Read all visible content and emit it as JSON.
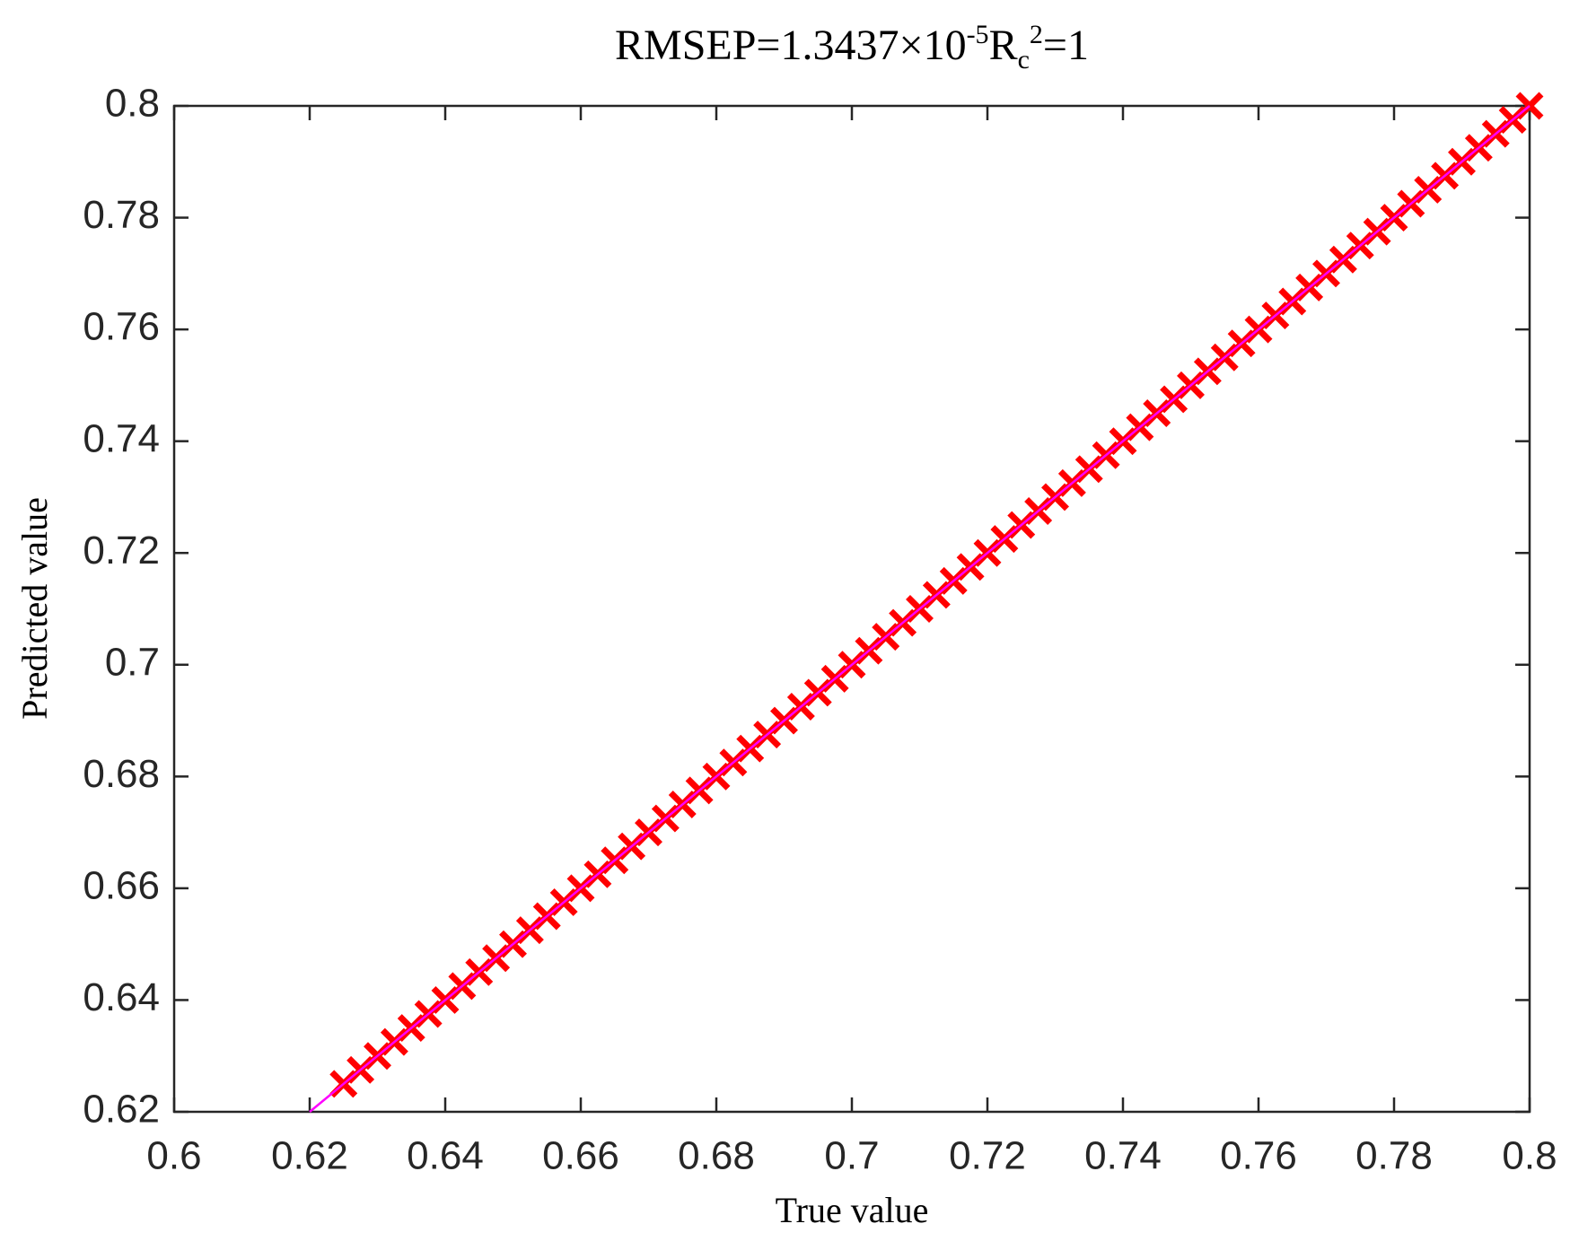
{
  "chart_data": {
    "type": "scatter",
    "title_runs": [
      {
        "text": "RMSEP=1.3437×10",
        "baseline": "normal"
      },
      {
        "text": "-5",
        "baseline": "super"
      },
      {
        "text": "R",
        "baseline": "normal"
      },
      {
        "text": "c",
        "baseline": "sub"
      },
      {
        "text": "2",
        "baseline": "super"
      },
      {
        "text": "=1",
        "baseline": "normal"
      }
    ],
    "xlabel": "True value",
    "ylabel": "Predicted value",
    "xlim": [
      0.6,
      0.8
    ],
    "ylim": [
      0.62,
      0.8
    ],
    "xticks": [
      0.6,
      0.62,
      0.64,
      0.66,
      0.68,
      0.7,
      0.72,
      0.74,
      0.76,
      0.78,
      0.8
    ],
    "yticks": [
      0.62,
      0.64,
      0.66,
      0.68,
      0.7,
      0.72,
      0.74,
      0.76,
      0.78,
      0.8
    ],
    "color": "#ff0000",
    "marker": "x",
    "x": [
      0.625,
      0.6275,
      0.63,
      0.6325,
      0.635,
      0.6375,
      0.64,
      0.6425,
      0.645,
      0.6475,
      0.65,
      0.6525,
      0.655,
      0.6575,
      0.66,
      0.6625,
      0.665,
      0.6675,
      0.67,
      0.6725,
      0.675,
      0.6775,
      0.68,
      0.6825,
      0.685,
      0.6875,
      0.69,
      0.6925,
      0.695,
      0.6975,
      0.7,
      0.7025,
      0.705,
      0.7075,
      0.71,
      0.7125,
      0.715,
      0.7175,
      0.72,
      0.7225,
      0.725,
      0.7275,
      0.73,
      0.7325,
      0.735,
      0.7375,
      0.74,
      0.7425,
      0.745,
      0.7475,
      0.75,
      0.7525,
      0.755,
      0.7575,
      0.76,
      0.7625,
      0.765,
      0.7675,
      0.77,
      0.7725,
      0.775,
      0.7775,
      0.78,
      0.7825,
      0.785,
      0.7875,
      0.79,
      0.7925,
      0.795,
      0.7975,
      0.8
    ],
    "y": [
      0.625,
      0.6275,
      0.63,
      0.6325,
      0.635,
      0.6375,
      0.64,
      0.6425,
      0.645,
      0.6475,
      0.65,
      0.6525,
      0.655,
      0.6575,
      0.66,
      0.6625,
      0.665,
      0.6675,
      0.67,
      0.6725,
      0.675,
      0.6775,
      0.68,
      0.6825,
      0.685,
      0.6875,
      0.69,
      0.6925,
      0.695,
      0.6975,
      0.7,
      0.7025,
      0.705,
      0.7075,
      0.71,
      0.7125,
      0.715,
      0.7175,
      0.72,
      0.7225,
      0.725,
      0.7275,
      0.73,
      0.7325,
      0.735,
      0.7375,
      0.74,
      0.7425,
      0.745,
      0.7475,
      0.75,
      0.7525,
      0.755,
      0.7575,
      0.76,
      0.7625,
      0.765,
      0.7675,
      0.77,
      0.7725,
      0.775,
      0.7775,
      0.78,
      0.7825,
      0.785,
      0.7875,
      0.79,
      0.7925,
      0.795,
      0.7975,
      0.8
    ],
    "fit": {
      "x": [
        0.62,
        0.8
      ],
      "y": [
        0.62,
        0.8
      ],
      "color": "#ff00ff"
    }
  }
}
